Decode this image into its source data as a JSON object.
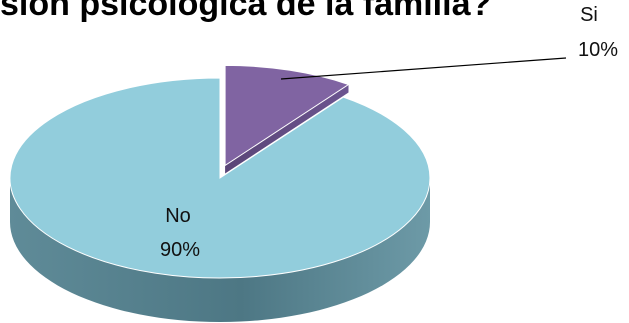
{
  "chart_data": {
    "type": "pie",
    "title": "sión psicológica de la familia?",
    "categories": [
      "Si",
      "No"
    ],
    "values": [
      10,
      90
    ],
    "percent_labels": [
      "10%",
      "90%"
    ],
    "colors": {
      "Si": "#8064a2",
      "No": "#92cddc"
    },
    "three_d": true,
    "exploded_slice": "Si"
  }
}
